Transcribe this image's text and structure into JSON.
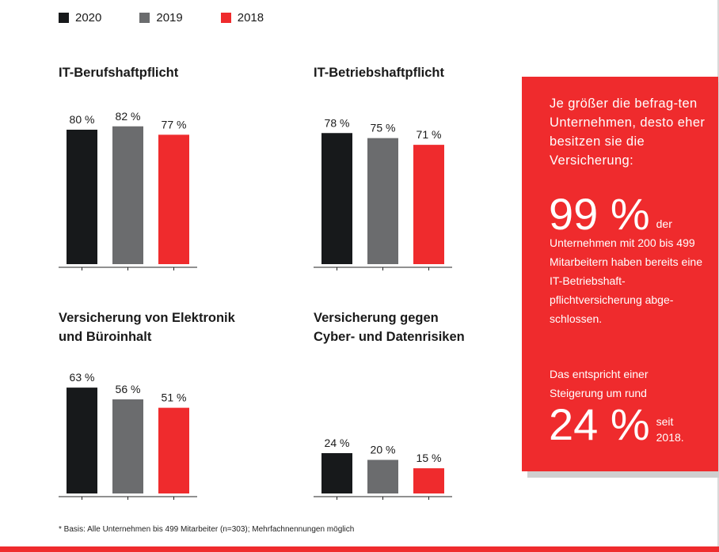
{
  "legend": [
    {
      "label": "2020",
      "color": "#17191b"
    },
    {
      "label": "2019",
      "color": "#6b6c6e"
    },
    {
      "label": "2018",
      "color": "#ef2b2d"
    }
  ],
  "chart_data": [
    {
      "type": "bar",
      "title": "IT-Berufshaftpflicht",
      "categories": [
        "2020",
        "2019",
        "2018"
      ],
      "values": [
        80,
        82,
        77
      ],
      "labels": [
        "80 %",
        "82 %",
        "77 %"
      ],
      "ylim": [
        0,
        100
      ]
    },
    {
      "type": "bar",
      "title": "IT-Betriebshaftpflicht",
      "categories": [
        "2020",
        "2019",
        "2018"
      ],
      "values": [
        78,
        75,
        71
      ],
      "labels": [
        "78 %",
        "75 %",
        "71 %"
      ],
      "ylim": [
        0,
        100
      ]
    },
    {
      "type": "bar",
      "title_lines": [
        "Versicherung von Elektronik",
        "und Büroinhalt"
      ],
      "categories": [
        "2020",
        "2019",
        "2018"
      ],
      "values": [
        63,
        56,
        51
      ],
      "labels": [
        "63 %",
        "56 %",
        "51 %"
      ],
      "ylim": [
        0,
        100
      ]
    },
    {
      "type": "bar",
      "title_lines": [
        "Versicherung gegen",
        "Cyber- und Datenrisiken"
      ],
      "categories": [
        "2020",
        "2019",
        "2018"
      ],
      "values": [
        24,
        20,
        15
      ],
      "labels": [
        "24 %",
        "20 %",
        "15 %"
      ],
      "ylim": [
        0,
        100
      ]
    }
  ],
  "callout": {
    "lead": "Je größer die befrag-ten Unternehmen, desto eher besitzen sie die Versicherung:",
    "big1": "99 %",
    "big1_suffix": "der",
    "body1": "Unternehmen mit 200 bis 499 Mitarbeitern haben bereits eine IT-Betriebshaft-pflichtversicherung abge-schlossen.",
    "body2": "Das entspricht einer Steigerung um rund",
    "big2": "24 %",
    "big2_suffix": "seit 2018."
  },
  "footnote": "* Basis: Alle Unternehmen bis 499 Mitarbeiter (n=303); Mehrfachnennungen möglich"
}
